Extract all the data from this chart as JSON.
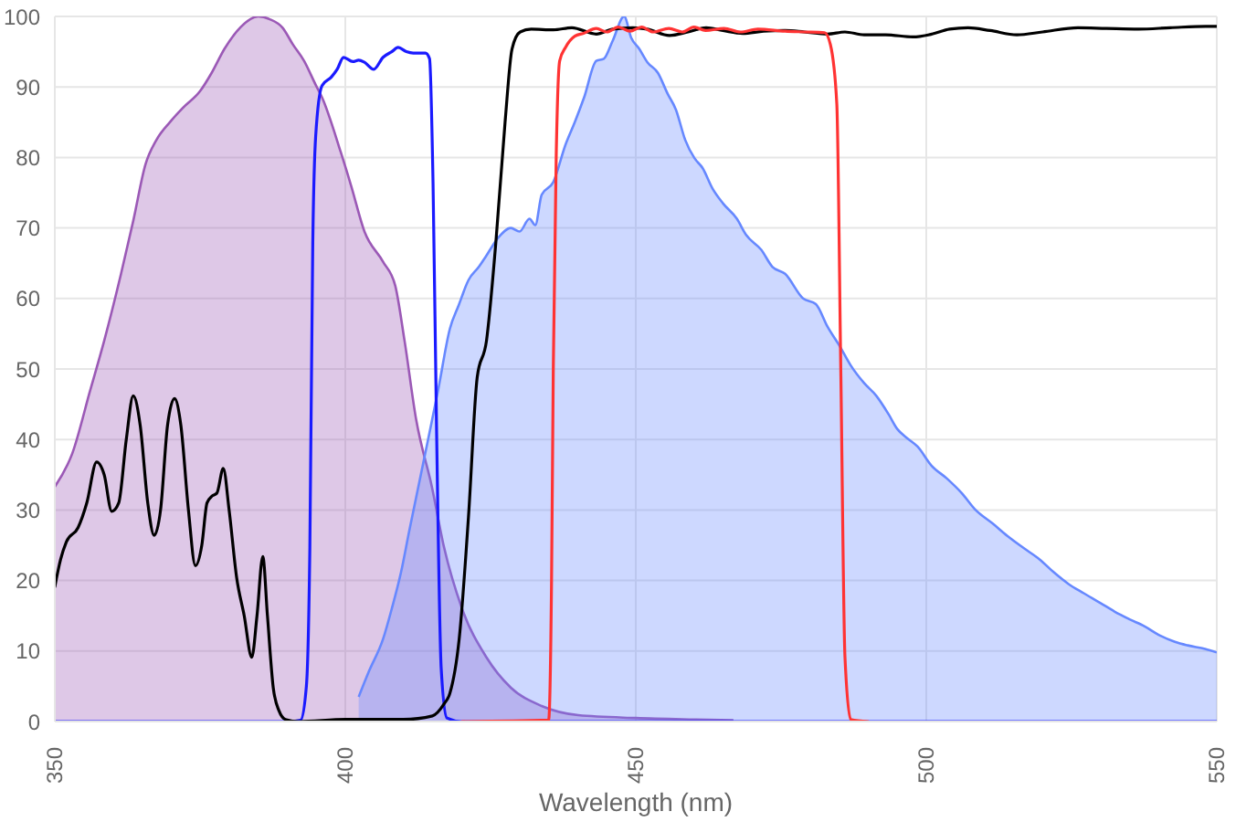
{
  "chart_data": {
    "type": "line",
    "xlabel": "Wavelength (nm)",
    "xlim": [
      350,
      550
    ],
    "xticks": [
      350,
      400,
      450,
      500,
      550
    ],
    "ylim": [
      0,
      100
    ],
    "yticks": [
      0,
      10,
      20,
      30,
      40,
      50,
      60,
      70,
      80,
      90,
      100
    ],
    "grid": true,
    "series": [
      {
        "type": "area",
        "color": "#9b59b6",
        "x": [
          350,
          353,
          356.1,
          358.5,
          361.4,
          363.5,
          365.6,
          367.5,
          369.8,
          372,
          375,
          377,
          379.2,
          382,
          385,
          387,
          389.2,
          391,
          392.9,
          394.9,
          396,
          399.2,
          401,
          403.3,
          406.5,
          408.6,
          410.2,
          412.2,
          414.9,
          417,
          420.1,
          424.3,
          428.5,
          433.8,
          440.1,
          450,
          460,
          466.8
        ],
        "values": [
          33.3,
          38,
          47,
          54,
          63.5,
          71,
          79,
          82.5,
          85,
          87,
          89.4,
          92,
          95.4,
          98.5,
          100,
          99.6,
          98.4,
          96,
          93.7,
          90.3,
          88.5,
          80.8,
          76,
          69.5,
          65.2,
          61.8,
          54,
          42.8,
          33.3,
          24.7,
          16,
          9.1,
          4.8,
          2.2,
          0.9,
          0.5,
          0.3,
          0.2
        ]
      },
      {
        "type": "area",
        "color": "#6688ff",
        "x": [
          402.3,
          404,
          406.5,
          408,
          409.6,
          411,
          412.8,
          414.5,
          416,
          418,
          419.5,
          421.2,
          423,
          424.3,
          426.4,
          428.5,
          430,
          431.7,
          432.7,
          433.8,
          435.8,
          437.9,
          439.5,
          441.1,
          443.2,
          444.5,
          446,
          448,
          449.2,
          450.6,
          452,
          453.8,
          455.5,
          456.9,
          458.5,
          460.1,
          461.5,
          463.2,
          465,
          467.4,
          469,
          471.6,
          473.5,
          475.7,
          478.8,
          481,
          483,
          485.2,
          487,
          489.3,
          491.4,
          493.5,
          495,
          496.7,
          498.5,
          500.9,
          503.5,
          506.1,
          508.5,
          511.4,
          514,
          516.6,
          519.5,
          521.9,
          524.5,
          527.1,
          530,
          532.4,
          535,
          537.6,
          540,
          542.8,
          545,
          548,
          550
        ],
        "values": [
          3.5,
          7,
          11.7,
          16,
          21.2,
          27,
          34.2,
          41,
          47.1,
          55.7,
          59,
          62.6,
          64.5,
          66.1,
          68.7,
          70,
          69.5,
          71.3,
          70.4,
          74.7,
          76.5,
          81.8,
          85,
          88.5,
          93.7,
          94,
          96.5,
          100,
          97,
          95.4,
          93.5,
          92,
          89,
          86.8,
          82.5,
          79.9,
          78.5,
          75.6,
          73.5,
          71.3,
          69,
          66.9,
          64.5,
          63.5,
          60,
          59.2,
          56,
          53.1,
          50.5,
          48,
          46.2,
          43.6,
          41.5,
          40.2,
          39,
          36.3,
          34.5,
          32.4,
          30,
          28.1,
          26.3,
          24.7,
          23,
          21.2,
          19.5,
          18.2,
          16.8,
          15.6,
          14.5,
          13.5,
          12.3,
          11.3,
          10.8,
          10.3,
          9.8
        ]
      },
      {
        "color": "#1a1aff",
        "x": [
          350,
          390,
          392.3,
          393.3,
          393.9,
          394.4,
          394.9,
          396,
          397.6,
          398.6,
          399.7,
          401.3,
          402.3,
          403.3,
          404.9,
          406.5,
          408,
          409.1,
          410.5,
          411.7,
          413.8,
          414.5,
          415.1,
          415.7,
          416.5,
          417.5,
          420,
          550
        ],
        "values": [
          0,
          0,
          0.2,
          5,
          24.7,
          67.8,
          83,
          90.2,
          91.4,
          92.5,
          94.2,
          93.6,
          93.8,
          93.5,
          92.5,
          94.2,
          95,
          95.6,
          95,
          94.8,
          94.8,
          94,
          76.5,
          42,
          7.6,
          0.5,
          0,
          0
        ]
      },
      {
        "color": "#000000",
        "x": [
          350,
          351,
          352,
          354,
          355.5,
          357.2,
          358.5,
          359.8,
          361,
          362.3,
          363.5,
          364.7,
          366,
          367.1,
          368.2,
          369.4,
          370.6,
          371.7,
          373,
          374.2,
          375.3,
          376.2,
          377.1,
          377.9,
          379,
          380,
          381.3,
          382.6,
          383.9,
          384.8,
          385.8,
          386.6,
          387.6,
          388.6,
          389.7,
          392,
          400,
          410,
          415,
          417,
          418,
          419.6,
          421.2,
          422.7,
          424.3,
          425.9,
          427.5,
          428.7,
          430.1,
          432,
          435.8,
          439,
          443.2,
          446,
          449.5,
          452,
          455.8,
          459,
          462.1,
          465,
          468.4,
          472,
          475.7,
          479,
          483,
          486,
          489.3,
          493,
          497.7,
          501,
          504,
          507.2,
          511,
          515.6,
          520,
          526.1,
          531,
          536.5,
          542,
          548.1,
          550
        ],
        "values": [
          19.1,
          23,
          25.5,
          27.5,
          31,
          36.8,
          35,
          29.8,
          31,
          40,
          46.2,
          42,
          31,
          26.4,
          30,
          42,
          45.8,
          42,
          30,
          22.1,
          25,
          31,
          32,
          32.4,
          35.9,
          30,
          20.4,
          15,
          9.1,
          15,
          23.4,
          15,
          4.8,
          1.5,
          0.3,
          0,
          0.3,
          0.3,
          0.8,
          2.5,
          4,
          11.7,
          29,
          48.8,
          54,
          67.8,
          85,
          95.4,
          97.8,
          98.2,
          98.1,
          98.4,
          97.5,
          98.2,
          98.4,
          98.2,
          97.3,
          97.8,
          98.4,
          98,
          97.6,
          97.9,
          98,
          97.8,
          97.5,
          97.8,
          97.4,
          97.4,
          97.1,
          97.5,
          98.2,
          98.4,
          98,
          97.4,
          97.8,
          98.4,
          98.3,
          98.2,
          98.4,
          98.6,
          98.6
        ]
      },
      {
        "color": "#ff3333",
        "x": [
          420,
          435,
          435.5,
          435.8,
          436.3,
          436.9,
          437.9,
          439.5,
          441,
          443.2,
          445,
          447,
          449,
          451,
          453,
          455.7,
          458,
          460,
          462,
          465.2,
          468,
          471,
          475.7,
          479,
          482.5,
          483.5,
          484.6,
          485.3,
          486,
          487,
          490
        ],
        "values": [
          0,
          0.2,
          20,
          50,
          80,
          93.7,
          95.6,
          97.2,
          97.6,
          98.3,
          97.8,
          98.5,
          97.9,
          98.5,
          97.8,
          98.3,
          97.8,
          98.5,
          98,
          98.3,
          97.8,
          98.2,
          97.9,
          97.8,
          97.7,
          96,
          87.6,
          49,
          9.2,
          0.3,
          0
        ]
      }
    ]
  }
}
